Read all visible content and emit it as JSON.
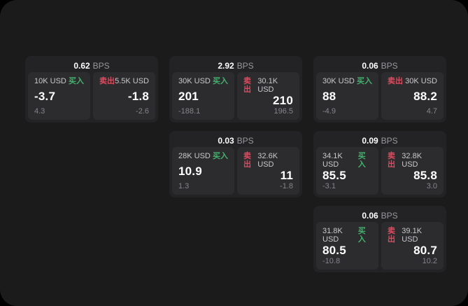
{
  "page": {
    "bps_unit": "BPS",
    "buy_label": "买入",
    "sell_label": "卖出"
  },
  "colors": {
    "buy_green": "#44b06e",
    "sell_red": "#dd4b5f",
    "page_bg": "#1b1b1c",
    "card_bg": "#232325",
    "panel_bg": "#2c2c2e"
  },
  "cards": [
    {
      "row": 1,
      "col": 1,
      "bps": "0.62",
      "buy": {
        "amount": "10K USD",
        "value": "-3.7",
        "delta": "4.3"
      },
      "sell": {
        "amount": "5.5K USD",
        "value": "-1.8",
        "delta": "-2.6"
      }
    },
    {
      "row": 1,
      "col": 2,
      "bps": "2.92",
      "buy": {
        "amount": "30K USD",
        "value": "201",
        "delta": "-188.1"
      },
      "sell": {
        "amount": "30.1K USD",
        "value": "210",
        "delta": "196.5"
      }
    },
    {
      "row": 1,
      "col": 3,
      "bps": "0.06",
      "buy": {
        "amount": "30K USD",
        "value": "88",
        "delta": "-4.9"
      },
      "sell": {
        "amount": "30K USD",
        "value": "88.2",
        "delta": "4.7"
      }
    },
    {
      "row": 2,
      "col": 2,
      "bps": "0.03",
      "buy": {
        "amount": "28K USD",
        "value": "10.9",
        "delta": "1.3"
      },
      "sell": {
        "amount": "32.6K USD",
        "value": "11",
        "delta": "-1.8"
      }
    },
    {
      "row": 2,
      "col": 3,
      "bps": "0.09",
      "buy": {
        "amount": "34.1K USD",
        "value": "85.5",
        "delta": "-3.1"
      },
      "sell": {
        "amount": "32.8K USD",
        "value": "85.8",
        "delta": "3.0"
      }
    },
    {
      "row": 3,
      "col": 3,
      "bps": "0.06",
      "buy": {
        "amount": "31.8K USD",
        "value": "80.5",
        "delta": "-10.8"
      },
      "sell": {
        "amount": "39.1K USD",
        "value": "80.7",
        "delta": "10.2"
      }
    }
  ]
}
